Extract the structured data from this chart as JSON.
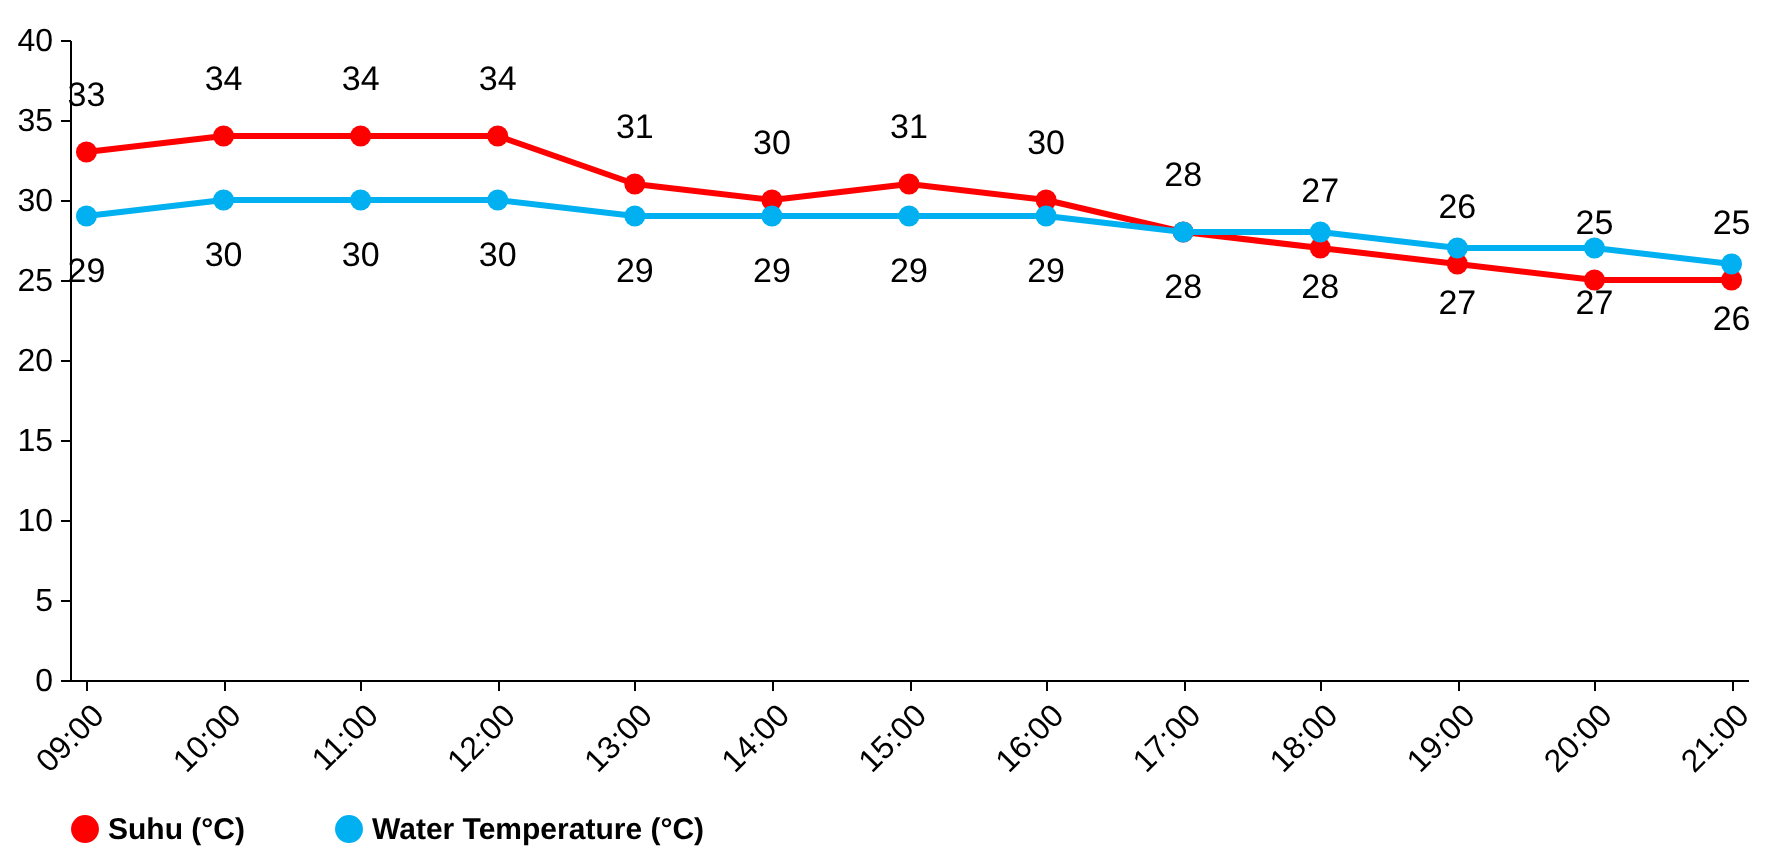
{
  "chart_data": {
    "type": "line",
    "categories": [
      "09:00",
      "10:00",
      "11:00",
      "12:00",
      "13:00",
      "14:00",
      "15:00",
      "16:00",
      "17:00",
      "18:00",
      "19:00",
      "20:00",
      "21:00"
    ],
    "series": [
      {
        "name": "Suhu (°C)",
        "color": "#ff0000",
        "values": [
          33,
          34,
          34,
          34,
          31,
          30,
          31,
          30,
          28,
          27,
          26,
          25,
          25
        ]
      },
      {
        "name": "Water Temperature (°C)",
        "color": "#00b0f0",
        "values": [
          29,
          30,
          30,
          30,
          29,
          29,
          29,
          29,
          28,
          28,
          27,
          27,
          26
        ]
      }
    ],
    "ylim": [
      0,
      40
    ],
    "yticks": [
      0,
      5,
      10,
      15,
      20,
      25,
      30,
      35,
      40
    ],
    "grid": false,
    "legend": "bottom",
    "marker": "circle",
    "line_style": "solid",
    "data_labels": true
  }
}
